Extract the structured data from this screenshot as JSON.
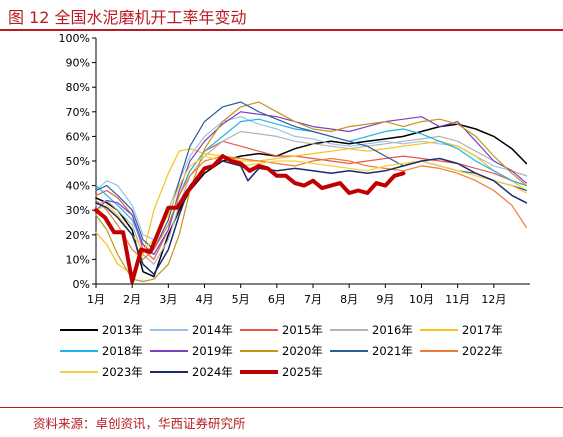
{
  "title": "图 12 全国水泥磨机开工率年变动",
  "source": "资料来源：卓创资讯，华西证券研究所",
  "chart_data": {
    "type": "line",
    "title": "全国水泥磨机开工率年变动",
    "xlabel": "",
    "ylabel": "",
    "x_tick_labels": [
      "1月",
      "2月",
      "3月",
      "4月",
      "5月",
      "6月",
      "7月",
      "8月",
      "9月",
      "10月",
      "11月",
      "12月"
    ],
    "y_tick_labels": [
      "0%",
      "10%",
      "20%",
      "30%",
      "40%",
      "50%",
      "60%",
      "70%",
      "80%",
      "90%",
      "100%"
    ],
    "ylim": [
      0,
      100
    ],
    "xlim": [
      1,
      13
    ],
    "grid": false,
    "legend_position": "bottom",
    "series": [
      {
        "name": "2013年",
        "color": "#000000",
        "width": 1.5,
        "x": [
          1,
          1.3,
          1.6,
          2,
          2.3,
          2.6,
          3,
          3.3,
          3.6,
          4,
          4.5,
          5,
          5.5,
          6,
          6.5,
          7,
          7.5,
          8,
          8.5,
          9,
          9.5,
          10,
          10.5,
          11,
          11.5,
          12,
          12.5,
          12.9
        ],
        "y": [
          35,
          33,
          30,
          22,
          5,
          3,
          20,
          30,
          38,
          45,
          50,
          52,
          53,
          52,
          55,
          57,
          58,
          57,
          58,
          59,
          60,
          62,
          64,
          65,
          63,
          60,
          55,
          49
        ]
      },
      {
        "name": "2014年",
        "color": "#9cc3e4",
        "width": 1.2,
        "x": [
          1,
          1.3,
          1.6,
          2,
          2.3,
          2.6,
          3,
          3.3,
          3.6,
          4,
          4.5,
          5,
          5.5,
          6,
          6.5,
          7,
          7.5,
          8,
          8.5,
          9,
          9.5,
          10,
          10.5,
          11,
          11.5,
          12,
          12.5,
          12.9
        ],
        "y": [
          38,
          42,
          40,
          32,
          20,
          18,
          30,
          42,
          52,
          60,
          66,
          68,
          65,
          63,
          60,
          59,
          57,
          56,
          57,
          58,
          57,
          58,
          57,
          56,
          52,
          48,
          46,
          44
        ]
      },
      {
        "name": "2015年",
        "color": "#e8574f",
        "width": 1.2,
        "x": [
          1,
          1.3,
          1.6,
          2,
          2.3,
          2.6,
          3,
          3.3,
          3.6,
          4,
          4.5,
          5,
          5.5,
          6,
          6.5,
          7,
          7.5,
          8,
          8.5,
          9,
          9.5,
          10,
          10.5,
          11,
          11.5,
          12,
          12.5,
          12.9
        ],
        "y": [
          36,
          38,
          35,
          28,
          14,
          10,
          22,
          36,
          46,
          54,
          58,
          56,
          54,
          52,
          52,
          51,
          50,
          49,
          50,
          51,
          52,
          51,
          50,
          49,
          47,
          45,
          42,
          40
        ]
      },
      {
        "name": "2016年",
        "color": "#b3b3b3",
        "width": 1.2,
        "x": [
          1,
          1.3,
          1.6,
          2,
          2.3,
          2.6,
          3,
          3.3,
          3.6,
          4,
          4.5,
          5,
          5.5,
          6,
          6.5,
          7,
          7.5,
          8,
          8.5,
          9,
          9.5,
          10,
          10.5,
          11,
          11.5,
          12,
          12.5,
          12.9
        ],
        "y": [
          32,
          34,
          30,
          24,
          12,
          8,
          18,
          32,
          44,
          52,
          58,
          62,
          61,
          60,
          58,
          57,
          56,
          55,
          56,
          57,
          58,
          59,
          60,
          58,
          54,
          50,
          46,
          44
        ]
      },
      {
        "name": "2017年",
        "color": "#f7c21a",
        "width": 1.2,
        "x": [
          1,
          1.3,
          1.6,
          2,
          2.3,
          2.6,
          3,
          3.3,
          3.6,
          4,
          4.5,
          5,
          5.5,
          6,
          6.5,
          7,
          7.5,
          8,
          8.5,
          9,
          9.5,
          10,
          10.5,
          11,
          11.5,
          12,
          12.5,
          12.9
        ],
        "y": [
          21,
          16,
          8,
          4,
          12,
          30,
          45,
          54,
          55,
          53,
          52,
          50,
          50,
          51,
          52,
          53,
          54,
          55,
          54,
          55,
          56,
          57,
          58,
          56,
          52,
          46,
          42,
          38
        ]
      },
      {
        "name": "2018年",
        "color": "#1eb4e6",
        "width": 1.2,
        "x": [
          1,
          1.3,
          1.6,
          2,
          2.3,
          2.6,
          3,
          3.3,
          3.6,
          4,
          4.5,
          5,
          5.5,
          6,
          6.5,
          7,
          7.5,
          8,
          8.5,
          9,
          9.5,
          10,
          10.5,
          11,
          11.5,
          12,
          12.5,
          12.9
        ],
        "y": [
          40,
          36,
          32,
          26,
          16,
          12,
          22,
          36,
          46,
          54,
          60,
          66,
          67,
          65,
          63,
          62,
          60,
          58,
          60,
          62,
          63,
          61,
          58,
          55,
          50,
          46,
          42,
          40
        ]
      },
      {
        "name": "2019年",
        "color": "#7c3fc4",
        "width": 1.2,
        "x": [
          1,
          1.3,
          1.6,
          2,
          2.3,
          2.6,
          3,
          3.3,
          3.6,
          4,
          4.5,
          5,
          5.5,
          6,
          6.5,
          7,
          7.5,
          8,
          8.5,
          9,
          9.5,
          10,
          10.5,
          11,
          11.5,
          12,
          12.5,
          12.9
        ],
        "y": [
          30,
          34,
          33,
          28,
          16,
          12,
          22,
          38,
          50,
          58,
          65,
          70,
          69,
          68,
          66,
          64,
          63,
          62,
          64,
          66,
          67,
          68,
          64,
          66,
          58,
          50,
          46,
          41
        ]
      },
      {
        "name": "2020年",
        "color": "#c2961b",
        "width": 1.2,
        "x": [
          1,
          1.3,
          1.6,
          2,
          2.3,
          2.6,
          3,
          3.3,
          3.6,
          4,
          4.5,
          5,
          5.5,
          6,
          6.5,
          7,
          7.5,
          8,
          8.5,
          9,
          9.5,
          10,
          10.5,
          11,
          11.5,
          12,
          12.5,
          12.9
        ],
        "y": [
          28,
          22,
          12,
          2,
          1,
          2,
          8,
          20,
          38,
          55,
          66,
          72,
          74,
          70,
          66,
          63,
          62,
          64,
          65,
          66,
          64,
          66,
          67,
          65,
          60,
          52,
          45,
          40
        ]
      },
      {
        "name": "2021年",
        "color": "#2d5d9b",
        "width": 1.2,
        "x": [
          1,
          1.3,
          1.6,
          2,
          2.3,
          2.6,
          3,
          3.3,
          3.6,
          4,
          4.5,
          5,
          5.5,
          6,
          6.5,
          7,
          7.5,
          8,
          8.5,
          9,
          9.5,
          10,
          10.5,
          11,
          11.5,
          12,
          12.5,
          12.9
        ],
        "y": [
          38,
          40,
          36,
          30,
          18,
          14,
          26,
          42,
          56,
          66,
          72,
          74,
          70,
          67,
          64,
          62,
          60,
          58,
          56,
          52,
          48,
          50,
          48,
          46,
          45,
          42,
          40,
          38
        ]
      },
      {
        "name": "2022年",
        "color": "#ed7d31",
        "width": 1.2,
        "x": [
          1,
          1.3,
          1.6,
          2,
          2.3,
          2.6,
          3,
          3.3,
          3.6,
          4,
          4.5,
          5,
          5.5,
          6,
          6.5,
          7,
          7.5,
          8,
          8.5,
          9,
          9.5,
          10,
          10.5,
          11,
          11.5,
          12,
          12.5,
          12.9
        ],
        "y": [
          34,
          30,
          24,
          14,
          10,
          14,
          24,
          36,
          44,
          50,
          52,
          51,
          50,
          49,
          48,
          50,
          51,
          50,
          48,
          47,
          46,
          48,
          47,
          45,
          42,
          38,
          32,
          23
        ]
      },
      {
        "name": "2023年",
        "color": "#f5d23a",
        "width": 1.2,
        "x": [
          1,
          1.3,
          1.6,
          2,
          2.3,
          2.6,
          3,
          3.3,
          3.6,
          4,
          4.5,
          5,
          5.5,
          6,
          6.5,
          7,
          7.5,
          8,
          8.5,
          9,
          9.5,
          10,
          10.5,
          11,
          11.5,
          12,
          12.5,
          12.9
        ],
        "y": [
          30,
          32,
          28,
          20,
          14,
          18,
          28,
          40,
          48,
          52,
          50,
          48,
          49,
          50,
          50,
          49,
          48,
          47,
          46,
          48,
          49,
          50,
          48,
          46,
          44,
          42,
          40,
          37
        ]
      },
      {
        "name": "2024年",
        "color": "#1f2a6b",
        "width": 1.5,
        "x": [
          1,
          1.3,
          1.6,
          2,
          2.3,
          2.6,
          3,
          3.3,
          3.6,
          4,
          4.5,
          5,
          5.2,
          5.5,
          6,
          6.5,
          7,
          7.5,
          8,
          8.5,
          9,
          9.5,
          10,
          10.5,
          11,
          11.5,
          12,
          12.5,
          12.9
        ],
        "y": [
          33,
          31,
          27,
          20,
          8,
          4,
          14,
          28,
          40,
          47,
          50,
          48,
          42,
          47,
          46,
          47,
          46,
          45,
          46,
          45,
          46,
          48,
          50,
          51,
          49,
          45,
          42,
          36,
          33
        ]
      },
      {
        "name": "2025年",
        "color": "#c00000",
        "width": 4,
        "x": [
          1,
          1.25,
          1.5,
          1.75,
          2,
          2.25,
          2.5,
          2.75,
          3,
          3.25,
          3.5,
          3.75,
          4,
          4.25,
          4.5,
          4.75,
          5,
          5.25,
          5.5,
          5.75,
          6,
          6.25,
          6.5,
          6.75,
          7,
          7.25,
          7.5,
          7.75,
          8,
          8.25,
          8.5,
          8.75,
          9,
          9.25,
          9.5
        ],
        "y": [
          30,
          27,
          21,
          21,
          1,
          14,
          13,
          22,
          31,
          31,
          37,
          42,
          47,
          48,
          52,
          50,
          49,
          46,
          48,
          47,
          44,
          44,
          41,
          40,
          42,
          39,
          40,
          41,
          37,
          38,
          37,
          41,
          40,
          44,
          45
        ]
      }
    ]
  }
}
